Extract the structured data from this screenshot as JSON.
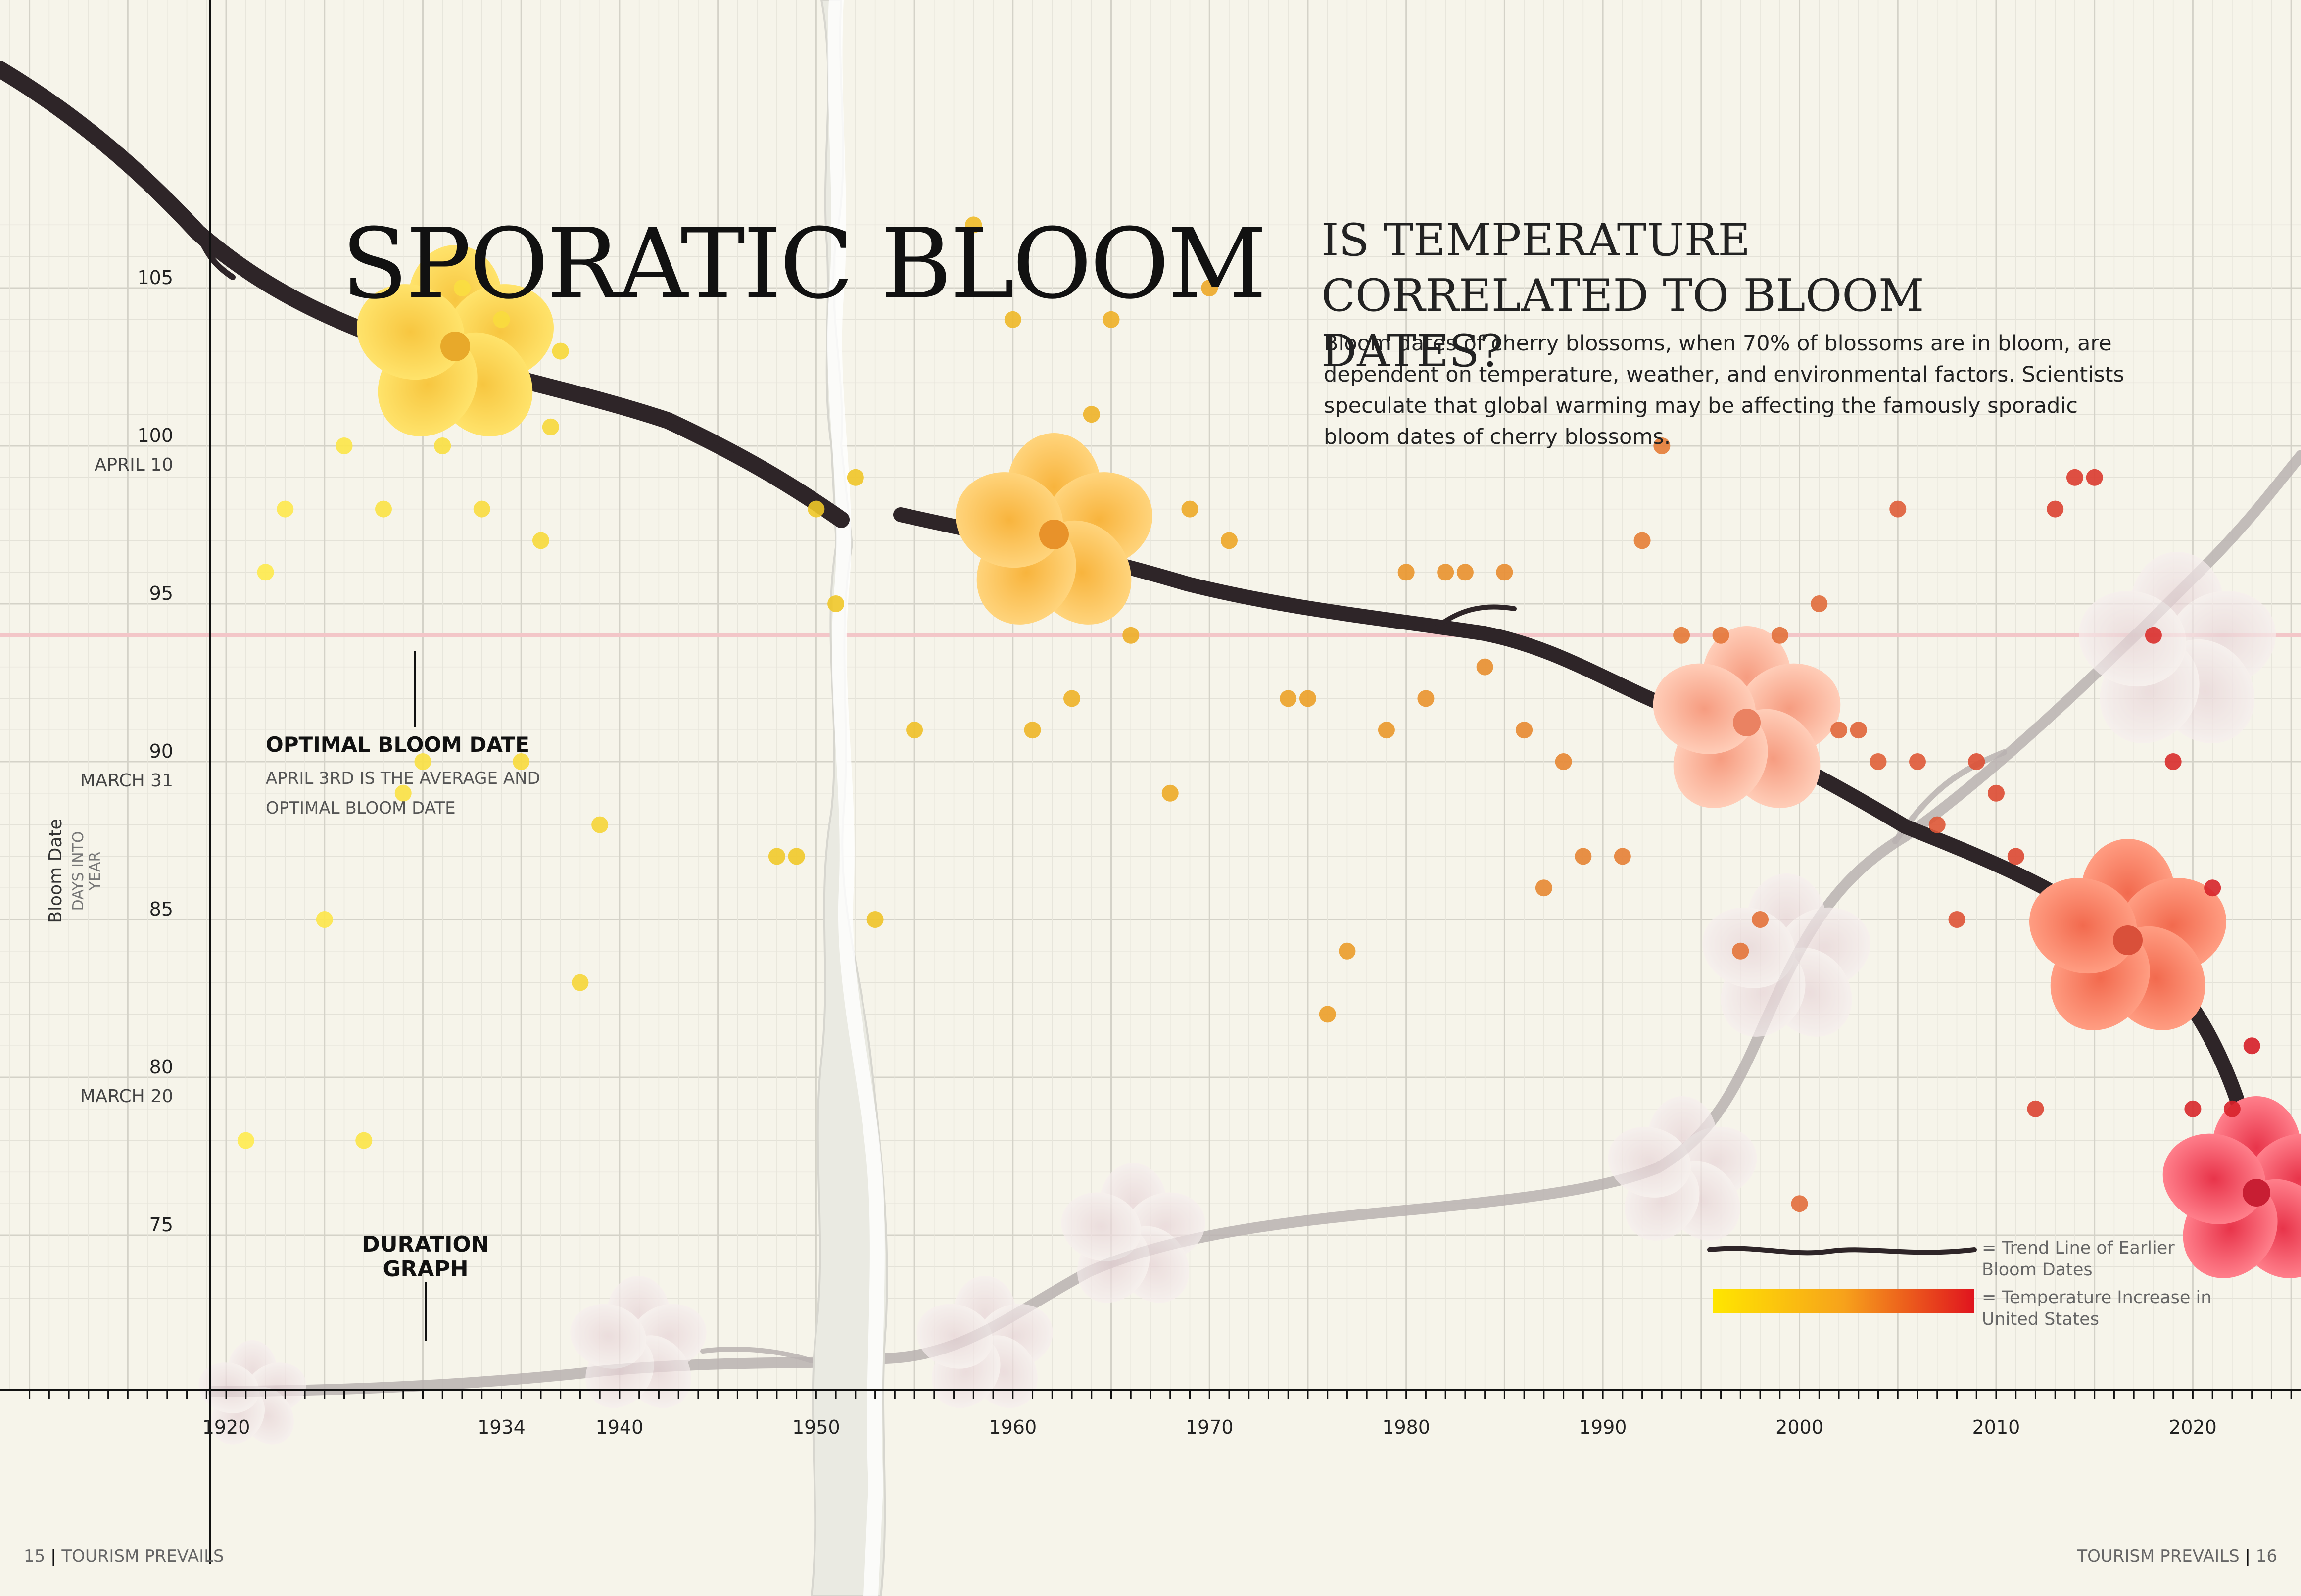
{
  "headline": "SPORATIC BLOOM",
  "question": "IS TEMPERATURE CORRELATED TO BLOOM DATES?",
  "body_text": "Bloom dates of cherry blossoms, when 70% of blossoms are in bloom, are dependent on temperature, weather, and environmental factors. Scientists speculate that global warming may be affecting the famously sporadic bloom dates of cherry blossoms.",
  "optimal": {
    "title": "OPTIMAL BLOOM DATE",
    "subtitle": "April 3rd is the average and optimal bloom date"
  },
  "duration_label": "DURATION GRAPH",
  "legend": {
    "trend": "= Trend Line of Earlier Bloom Dates",
    "temperature": "= Temperature Increase in United States"
  },
  "footer": {
    "left_page": "15",
    "left_title": "TOURISM PREVAILS",
    "right_title": "TOURISM PREVAILS",
    "right_page": "16"
  },
  "colors": {
    "background": "#f6f4ea",
    "grid": "#dcdad0",
    "optimal_line": "#f3c6c8",
    "gradient_start": "#ffe600",
    "gradient_end": "#e0141e",
    "branch": "#2e2528"
  },
  "chart_data": {
    "type": "scatter",
    "ylabel": "Bloom Date",
    "ylabel_sub": "DAYS INTO YEAR",
    "ylim": [
      73,
      107
    ],
    "xlim": [
      1908.5,
      2025.5
    ],
    "grid": true,
    "x_tick_labels": [
      "1920",
      "1934",
      "1940",
      "1950",
      "1960",
      "1970",
      "1980",
      "1990",
      "2000",
      "2010",
      "2020"
    ],
    "y_ticks": [
      {
        "value": 105,
        "label": "105",
        "date": ""
      },
      {
        "value": 100,
        "label": "100",
        "date": "APRIL 10"
      },
      {
        "value": 95,
        "label": "95",
        "date": ""
      },
      {
        "value": 90,
        "label": "90",
        "date": "MARCH 31"
      },
      {
        "value": 85,
        "label": "85",
        "date": ""
      },
      {
        "value": 80,
        "label": "80",
        "date": "MARCH 20"
      },
      {
        "value": 75,
        "label": "75",
        "date": ""
      }
    ],
    "optimal_bloom_day": 94,
    "series": [
      {
        "points": [
          [
            1921,
            78
          ],
          [
            1922,
            96
          ],
          [
            1923,
            98
          ],
          [
            1925,
            85
          ],
          [
            1926,
            100
          ],
          [
            1927,
            78
          ],
          [
            1928,
            98
          ],
          [
            1929,
            89
          ],
          [
            1930,
            90
          ],
          [
            1931,
            100
          ],
          [
            1932,
            105
          ],
          [
            1933,
            98
          ],
          [
            1934,
            104
          ],
          [
            1935,
            90
          ],
          [
            1936,
            97
          ],
          [
            1936.5,
            100.6
          ],
          [
            1937,
            103
          ],
          [
            1938,
            83
          ],
          [
            1939,
            88
          ],
          [
            1948,
            87
          ],
          [
            1949,
            87
          ],
          [
            1950,
            98
          ],
          [
            1951,
            95
          ],
          [
            1952,
            99
          ],
          [
            1953,
            85
          ],
          [
            1955,
            91
          ],
          [
            1958,
            107
          ],
          [
            1960,
            104
          ],
          [
            1961,
            91
          ],
          [
            1963,
            92
          ],
          [
            1964,
            101
          ],
          [
            1965,
            104
          ],
          [
            1966,
            94
          ],
          [
            1968,
            89
          ],
          [
            1969,
            98
          ],
          [
            1970,
            105
          ],
          [
            1971,
            97
          ],
          [
            1974,
            92
          ],
          [
            1975,
            92
          ],
          [
            1976,
            82
          ],
          [
            1977,
            84
          ],
          [
            1979,
            91
          ],
          [
            1980,
            96
          ],
          [
            1981,
            92
          ],
          [
            1982,
            96
          ],
          [
            1983,
            96
          ],
          [
            1984,
            93
          ],
          [
            1985,
            96
          ],
          [
            1986,
            91
          ],
          [
            1987,
            86
          ],
          [
            1988,
            90
          ],
          [
            1989,
            87
          ],
          [
            1991,
            87
          ],
          [
            1992,
            97
          ],
          [
            1993,
            100
          ],
          [
            1994,
            94
          ],
          [
            1996,
            94
          ],
          [
            1997,
            84
          ],
          [
            1998,
            85
          ],
          [
            1999,
            94
          ],
          [
            2000,
            76
          ],
          [
            2001,
            95
          ],
          [
            2002,
            91
          ],
          [
            2003,
            91
          ],
          [
            2004,
            90
          ],
          [
            2005,
            98
          ],
          [
            2006,
            90
          ],
          [
            2007,
            88
          ],
          [
            2008,
            85
          ],
          [
            2009,
            90
          ],
          [
            2010,
            89
          ],
          [
            2011,
            87
          ],
          [
            2012,
            79
          ],
          [
            2013,
            98
          ],
          [
            2014,
            99
          ],
          [
            2015,
            99
          ],
          [
            2018,
            94
          ],
          [
            2019,
            90
          ],
          [
            2020,
            79
          ],
          [
            2021,
            86
          ],
          [
            2022,
            79
          ],
          [
            2023,
            81
          ]
        ]
      }
    ]
  }
}
